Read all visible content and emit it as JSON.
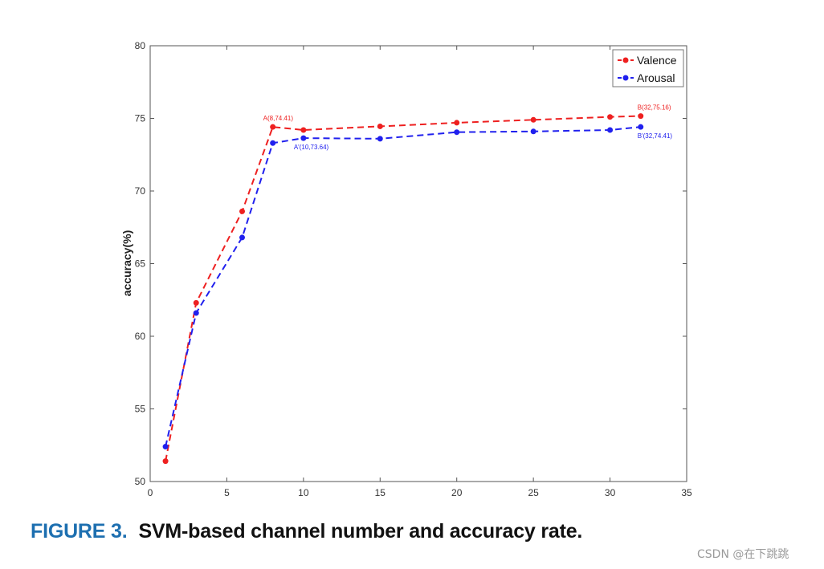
{
  "chart_data": {
    "type": "line",
    "title": "",
    "xlabel": "",
    "ylabel": "accuracy(%)",
    "xlim": [
      0,
      35
    ],
    "ylim": [
      50,
      80
    ],
    "xticks": [
      0,
      5,
      10,
      15,
      20,
      25,
      30,
      35
    ],
    "yticks": [
      50,
      55,
      60,
      65,
      70,
      75,
      80
    ],
    "grid": false,
    "legend_position": "top-right",
    "series": [
      {
        "name": "Valence",
        "color": "#ee2020",
        "line_style": "dashed",
        "x": [
          1,
          3,
          6,
          8,
          10,
          15,
          20,
          25,
          30,
          32
        ],
        "y": [
          51.4,
          62.3,
          68.6,
          74.41,
          74.2,
          74.45,
          74.7,
          74.9,
          75.1,
          75.16
        ]
      },
      {
        "name": "Arousal",
        "color": "#2020ee",
        "line_style": "dashed",
        "x": [
          1,
          3,
          6,
          8,
          10,
          15,
          20,
          25,
          30,
          32
        ],
        "y": [
          52.4,
          61.6,
          66.8,
          73.3,
          73.64,
          73.6,
          74.05,
          74.1,
          74.2,
          74.41
        ]
      }
    ],
    "annotations": [
      {
        "text": "A(8,74.41)",
        "x": 8,
        "y": 74.41,
        "color": "#ee2020",
        "placement": "above"
      },
      {
        "text": "A'(10,73.64)",
        "x": 10,
        "y": 73.64,
        "color": "#2020ee",
        "placement": "below"
      },
      {
        "text": "B(32,75.16)",
        "x": 32,
        "y": 75.16,
        "color": "#ee2020",
        "placement": "above"
      },
      {
        "text": "B'(32,74.41)",
        "x": 32,
        "y": 74.41,
        "color": "#2020ee",
        "placement": "below"
      }
    ]
  },
  "caption": {
    "figure_number": "FIGURE 3.",
    "text": "SVM-based channel number and accuracy rate."
  },
  "watermark": "CSDN @在下跳跳"
}
